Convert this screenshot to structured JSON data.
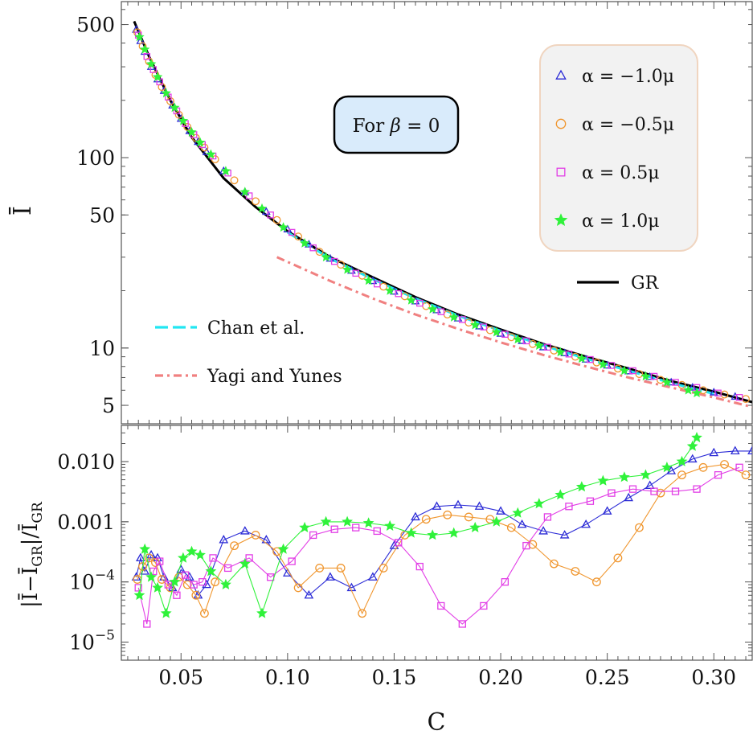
{
  "annotation": {
    "prefix": "For ",
    "symbol": "β",
    "suffix": " = 0"
  },
  "axes": {
    "top_ylabel": "Ī",
    "bottom_ylabel": "|Ī−Ī_GR|/Ī_GR",
    "bottom_ylabel_base": "|Ī−Ī",
    "bottom_ylabel_sub1": "GR",
    "bottom_ylabel_mid": "|/Ī",
    "bottom_ylabel_sub2": "GR",
    "xlabel": "C"
  },
  "legend_markers": [
    {
      "prefix": "α = ",
      "value": "−1.0μ",
      "marker": "triangle",
      "color": "#2b2bd6"
    },
    {
      "prefix": "α = ",
      "value": "−0.5μ",
      "marker": "circle",
      "color": "#f0962e"
    },
    {
      "prefix": "α = ",
      "value": "0.5μ",
      "marker": "square",
      "color": "#e23ee6"
    },
    {
      "prefix": "α = ",
      "value": "1.0μ",
      "marker": "star",
      "color": "#2ff23a"
    }
  ],
  "legend_lines": [
    {
      "label": "GR",
      "color": "#000000",
      "style": "solid"
    },
    {
      "label": "Chan et al.",
      "color": "#22e6f2",
      "style": "dashed"
    },
    {
      "label": "Yagi and Yunes",
      "color": "#f08080",
      "style": "dashdot"
    }
  ],
  "chart_data": [
    {
      "type": "line",
      "panel": "top",
      "ylabel": "Ī",
      "y_scale": "log",
      "xlim": [
        0.022,
        0.318
      ],
      "ylim": [
        4,
        660
      ],
      "xticks": [
        0.05,
        0.1,
        0.15,
        0.2,
        0.25,
        0.3
      ],
      "yticks": [
        {
          "value": 500,
          "label": "500"
        },
        {
          "value": 100,
          "label": "100"
        },
        {
          "value": 50,
          "label": "50"
        },
        {
          "value": 10,
          "label": "10"
        },
        {
          "value": 5,
          "label": "5"
        }
      ],
      "series": [
        {
          "name": "GR",
          "color": "#000000",
          "style": "solid",
          "x": [
            0.028,
            0.035,
            0.045,
            0.055,
            0.07,
            0.085,
            0.1,
            0.12,
            0.14,
            0.16,
            0.18,
            0.2,
            0.22,
            0.24,
            0.26,
            0.28,
            0.3,
            0.318
          ],
          "y": [
            520,
            340,
            200,
            128,
            78,
            55,
            41,
            30,
            23.5,
            18.5,
            15,
            12.5,
            10.5,
            9,
            7.8,
            6.7,
            5.9,
            5.2
          ]
        },
        {
          "name": "Chan et al.",
          "color": "#22e6f2",
          "style": "dashed",
          "x": [
            0.1,
            0.12,
            0.14,
            0.16,
            0.18,
            0.2,
            0.22,
            0.24,
            0.26,
            0.28,
            0.3
          ],
          "y": [
            40.5,
            29.5,
            23,
            18.2,
            14.8,
            12.3,
            10.3,
            8.8,
            7.6,
            6.55,
            5.75
          ]
        },
        {
          "name": "Yagi and Yunes",
          "color": "#f08080",
          "style": "dashdot",
          "x": [
            0.095,
            0.12,
            0.14,
            0.16,
            0.18,
            0.2,
            0.22,
            0.24,
            0.26,
            0.28,
            0.3,
            0.318
          ],
          "y": [
            30,
            22.5,
            18.2,
            15,
            12.6,
            10.7,
            9.2,
            8,
            7,
            6.2,
            5.5,
            4.9
          ]
        },
        {
          "name": "α = −1.0μ",
          "marker": "triangle",
          "color": "#2b2bd6",
          "x": [
            0.029,
            0.031,
            0.033,
            0.036,
            0.039,
            0.042,
            0.046,
            0.05,
            0.054,
            0.058,
            0.062,
            0.07,
            0.08,
            0.09,
            0.1,
            0.11,
            0.12,
            0.13,
            0.14,
            0.15,
            0.16,
            0.17,
            0.18,
            0.19,
            0.2,
            0.21,
            0.22,
            0.23,
            0.24,
            0.25,
            0.26,
            0.27,
            0.28,
            0.29,
            0.3,
            0.31
          ],
          "y": [
            470,
            410,
            360,
            300,
            258,
            224,
            188,
            160,
            138,
            121,
            107,
            85,
            66,
            52,
            42,
            35,
            29.5,
            25.5,
            22.5,
            19.8,
            17.6,
            15.8,
            14.3,
            13,
            11.9,
            10.9,
            10.1,
            9.4,
            8.7,
            8.1,
            7.55,
            7.05,
            6.6,
            6.2,
            5.85,
            5.55
          ]
        },
        {
          "name": "α = −0.5μ",
          "marker": "circle",
          "color": "#f0962e",
          "x": [
            0.0295,
            0.032,
            0.035,
            0.038,
            0.041,
            0.045,
            0.049,
            0.053,
            0.057,
            0.061,
            0.066,
            0.075,
            0.085,
            0.095,
            0.105,
            0.115,
            0.125,
            0.135,
            0.145,
            0.155,
            0.165,
            0.175,
            0.185,
            0.195,
            0.205,
            0.215,
            0.225,
            0.235,
            0.245,
            0.255,
            0.265,
            0.275,
            0.285,
            0.295,
            0.305,
            0.315
          ],
          "y": [
            455,
            385,
            320,
            272,
            235,
            198,
            168,
            145,
            127,
            113,
            98,
            76,
            59,
            47,
            38.5,
            32,
            27.4,
            24,
            21,
            18.7,
            16.6,
            15,
            13.6,
            12.4,
            11.4,
            10.5,
            9.7,
            9.0,
            8.4,
            7.8,
            7.3,
            6.8,
            6.4,
            6.0,
            5.7,
            5.4
          ]
        },
        {
          "name": "α = 0.5μ",
          "marker": "square",
          "color": "#e23ee6",
          "x": [
            0.03,
            0.034,
            0.037,
            0.04,
            0.044,
            0.048,
            0.052,
            0.056,
            0.06,
            0.065,
            0.072,
            0.082,
            0.092,
            0.102,
            0.112,
            0.122,
            0.132,
            0.142,
            0.152,
            0.162,
            0.172,
            0.182,
            0.192,
            0.202,
            0.212,
            0.222,
            0.232,
            0.242,
            0.252,
            0.262,
            0.272,
            0.282,
            0.292,
            0.302,
            0.312
          ],
          "y": [
            440,
            340,
            290,
            250,
            208,
            176,
            151,
            132,
            117,
            102,
            83,
            63,
            50,
            40.5,
            33.6,
            28.5,
            24.7,
            21.7,
            19.3,
            17.2,
            15.5,
            14.1,
            12.9,
            11.8,
            10.9,
            10.1,
            9.3,
            8.7,
            8.1,
            7.6,
            7.1,
            6.6,
            6.2,
            5.8,
            5.5
          ]
        },
        {
          "name": "α = 1.0μ",
          "marker": "star",
          "color": "#2ff23a",
          "x": [
            0.0305,
            0.033,
            0.036,
            0.039,
            0.043,
            0.047,
            0.051,
            0.055,
            0.059,
            0.064,
            0.071,
            0.08,
            0.088,
            0.098,
            0.108,
            0.118,
            0.128,
            0.138,
            0.148,
            0.158,
            0.168,
            0.178,
            0.188,
            0.198,
            0.208,
            0.218,
            0.228,
            0.238,
            0.248,
            0.258,
            0.268,
            0.278,
            0.288,
            0.292
          ],
          "y": [
            430,
            370,
            310,
            265,
            218,
            183,
            156,
            136,
            120,
            104,
            85,
            66,
            54,
            43,
            35.5,
            30,
            25.8,
            22.6,
            20,
            17.8,
            16,
            14.5,
            13.2,
            12.1,
            11.1,
            10.3,
            9.5,
            8.8,
            8.2,
            7.6,
            7.1,
            6.6,
            6.0,
            5.8
          ]
        }
      ]
    },
    {
      "type": "line",
      "panel": "bottom",
      "ylabel": "|Ī−Ī_GR|/Ī_GR",
      "xlabel": "C",
      "y_scale": "log",
      "xlim": [
        0.022,
        0.318
      ],
      "ylim": [
        5e-06,
        0.04
      ],
      "xticks": [
        {
          "value": 0.05,
          "label": "0.05"
        },
        {
          "value": 0.1,
          "label": "0.10"
        },
        {
          "value": 0.15,
          "label": "0.15"
        },
        {
          "value": 0.2,
          "label": "0.20"
        },
        {
          "value": 0.25,
          "label": "0.25"
        },
        {
          "value": 0.3,
          "label": "0.30"
        }
      ],
      "yticks": [
        {
          "value": 0.01,
          "label": "0.010"
        },
        {
          "value": 0.001,
          "label": "0.001"
        },
        {
          "value": 0.0001,
          "label": "10",
          "exp": "−4"
        },
        {
          "value": 1e-05,
          "label": "10",
          "exp": "−5"
        }
      ],
      "series": [
        {
          "name": "α = −1.0μ",
          "marker": "triangle",
          "color": "#2b2bd6",
          "x": [
            0.029,
            0.031,
            0.033,
            0.036,
            0.039,
            0.042,
            0.046,
            0.05,
            0.054,
            0.058,
            0.062,
            0.07,
            0.08,
            0.09,
            0.1,
            0.11,
            0.12,
            0.13,
            0.14,
            0.15,
            0.16,
            0.17,
            0.18,
            0.19,
            0.2,
            0.21,
            0.22,
            0.23,
            0.24,
            0.25,
            0.26,
            0.27,
            0.28,
            0.29,
            0.3,
            0.31,
            0.318
          ],
          "y": [
            0.00012,
            0.00025,
            0.00015,
            0.00028,
            0.00025,
            0.00012,
            8e-05,
            0.00016,
            0.00012,
            6e-05,
            9e-05,
            0.0005,
            0.0007,
            0.0005,
            0.00014,
            6e-05,
            0.00012,
            8e-05,
            0.00012,
            0.0004,
            0.0012,
            0.0018,
            0.0019,
            0.0018,
            0.0015,
            0.0009,
            0.0007,
            0.0006,
            0.0009,
            0.0015,
            0.0025,
            0.004,
            0.007,
            0.011,
            0.014,
            0.015,
            0.015
          ]
        },
        {
          "name": "α = −0.5μ",
          "marker": "circle",
          "color": "#f0962e",
          "x": [
            0.0295,
            0.032,
            0.035,
            0.038,
            0.041,
            0.045,
            0.049,
            0.053,
            0.057,
            0.061,
            0.066,
            0.075,
            0.085,
            0.095,
            0.105,
            0.115,
            0.125,
            0.135,
            0.145,
            0.155,
            0.165,
            0.175,
            0.185,
            0.195,
            0.205,
            0.215,
            0.225,
            0.235,
            0.245,
            0.255,
            0.265,
            0.275,
            0.285,
            0.295,
            0.305,
            0.315
          ],
          "y": [
            0.00011,
            0.00018,
            0.00025,
            0.00021,
            0.00011,
            8e-05,
            0.00012,
            9e-05,
            6e-05,
            3e-05,
            0.0001,
            0.0004,
            0.0006,
            0.00032,
            8e-05,
            0.00017,
            0.00017,
            3e-05,
            0.00017,
            0.0006,
            0.0011,
            0.0013,
            0.0012,
            0.0011,
            0.0008,
            0.00042,
            0.0002,
            0.00015,
            0.0001,
            0.00025,
            0.0008,
            0.003,
            0.006,
            0.008,
            0.009,
            0.006
          ]
        },
        {
          "name": "α = 0.5μ",
          "marker": "square",
          "color": "#e23ee6",
          "x": [
            0.03,
            0.034,
            0.037,
            0.04,
            0.044,
            0.048,
            0.052,
            0.056,
            0.06,
            0.065,
            0.072,
            0.082,
            0.092,
            0.102,
            0.112,
            0.122,
            0.132,
            0.142,
            0.152,
            0.162,
            0.172,
            0.182,
            0.192,
            0.202,
            0.212,
            0.222,
            0.232,
            0.242,
            0.252,
            0.262,
            0.272,
            0.282,
            0.292,
            0.302,
            0.312
          ],
          "y": [
            8e-05,
            2e-05,
            0.00015,
            0.00022,
            9e-05,
            6e-05,
            0.00013,
            9e-05,
            0.0001,
            0.00025,
            0.00017,
            0.00025,
            0.00012,
            0.00022,
            0.0006,
            0.00075,
            0.0008,
            0.0007,
            0.00045,
            0.00018,
            4e-05,
            2e-05,
            4e-05,
            0.0001,
            0.0004,
            0.0012,
            0.0018,
            0.0022,
            0.003,
            0.0035,
            0.0032,
            0.0032,
            0.0035,
            0.006,
            0.008
          ]
        },
        {
          "name": "α = 1.0μ",
          "marker": "star",
          "color": "#2ff23a",
          "x": [
            0.0305,
            0.033,
            0.036,
            0.039,
            0.043,
            0.047,
            0.051,
            0.055,
            0.059,
            0.064,
            0.071,
            0.08,
            0.088,
            0.098,
            0.108,
            0.118,
            0.128,
            0.138,
            0.148,
            0.158,
            0.168,
            0.178,
            0.188,
            0.198,
            0.208,
            0.218,
            0.228,
            0.238,
            0.248,
            0.258,
            0.268,
            0.278,
            0.285,
            0.29,
            0.292
          ],
          "y": [
            6e-05,
            0.00035,
            0.00012,
            8e-05,
            3e-05,
            0.0001,
            0.00025,
            0.00032,
            0.00028,
            0.00015,
            9e-05,
            0.0002,
            3e-05,
            0.00035,
            0.0008,
            0.001,
            0.001,
            0.00095,
            0.00085,
            0.00065,
            0.0006,
            0.00065,
            0.0008,
            0.001,
            0.0014,
            0.002,
            0.0028,
            0.0038,
            0.0048,
            0.0055,
            0.006,
            0.008,
            0.01,
            0.018,
            0.025
          ]
        }
      ]
    }
  ]
}
